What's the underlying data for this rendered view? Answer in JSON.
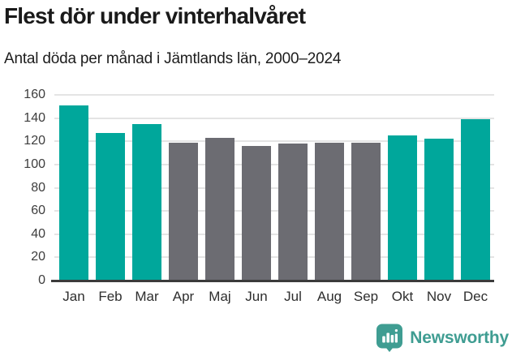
{
  "header": {
    "title": "Flest dör under vinterhalvåret",
    "subtitle": "Antal döda per månad i Jämtlands län, 2000–2024"
  },
  "chart_data": {
    "type": "bar",
    "title": "Flest dör under vinterhalvåret",
    "subtitle": "Antal döda per månad i Jämtlands län, 2000–2024",
    "categories": [
      "Jan",
      "Feb",
      "Mar",
      "Apr",
      "Maj",
      "Jun",
      "Jul",
      "Aug",
      "Sep",
      "Okt",
      "Nov",
      "Dec"
    ],
    "values": [
      151,
      127,
      135,
      119,
      123,
      116,
      118,
      119,
      119,
      125,
      122,
      139
    ],
    "bar_color_keys": [
      "teal",
      "teal",
      "teal",
      "gray",
      "gray",
      "gray",
      "gray",
      "gray",
      "gray",
      "teal",
      "teal",
      "teal"
    ],
    "colors": {
      "teal": "#00a79b",
      "gray": "#6c6c72"
    },
    "xlabel": "",
    "ylabel": "",
    "ylim": [
      0,
      160
    ],
    "yticks": [
      0,
      20,
      40,
      60,
      80,
      100,
      120,
      140,
      160
    ],
    "grid": "horizontal",
    "legend": "none"
  },
  "footer": {
    "brand": "Newsworthy",
    "brand_color": "#3f9d92"
  }
}
